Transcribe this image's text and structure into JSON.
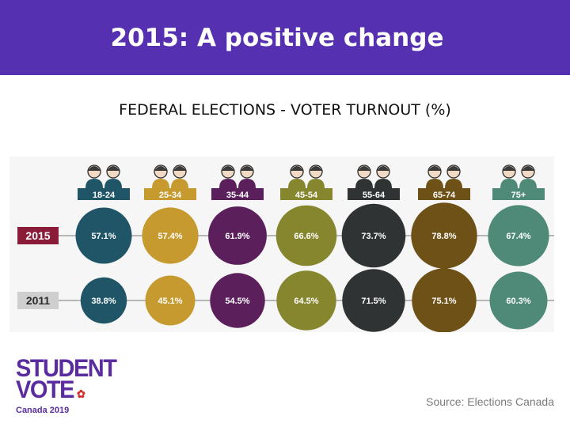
{
  "header": {
    "title": "2015: A positive change"
  },
  "subtitle": "FEDERAL ELECTIONS - VOTER TURNOUT (%)",
  "chart_data": {
    "type": "bubble",
    "title": "FEDERAL ELECTIONS - VOTER TURNOUT (%)",
    "categories": [
      "18-24",
      "25-34",
      "35-44",
      "45-54",
      "55-64",
      "65-74",
      "75+"
    ],
    "colors": [
      "#1f5566",
      "#c69a2e",
      "#5b1f5c",
      "#86862e",
      "#2f3334",
      "#6e5117",
      "#4f8a78"
    ],
    "series": [
      {
        "name": "2015",
        "values": [
          57.1,
          57.4,
          61.9,
          66.6,
          73.7,
          78.8,
          67.4
        ],
        "labels": [
          "57.1%",
          "57.4%",
          "61.9%",
          "66.6%",
          "73.7%",
          "78.8%",
          "67.4%"
        ]
      },
      {
        "name": "2011",
        "values": [
          38.8,
          45.1,
          54.5,
          64.5,
          71.5,
          75.1,
          60.3
        ],
        "labels": [
          "38.8%",
          "45.1%",
          "54.5%",
          "64.5%",
          "71.5%",
          "75.1%",
          "60.3%"
        ]
      }
    ],
    "row_label_colors": {
      "2015": "#8a1c3a",
      "2011": "#cfcfcf"
    }
  },
  "logo": {
    "line1": "STUDENT",
    "line2": "VOTE",
    "line3": "Canada 2019"
  },
  "source": "Source: Elections Canada"
}
